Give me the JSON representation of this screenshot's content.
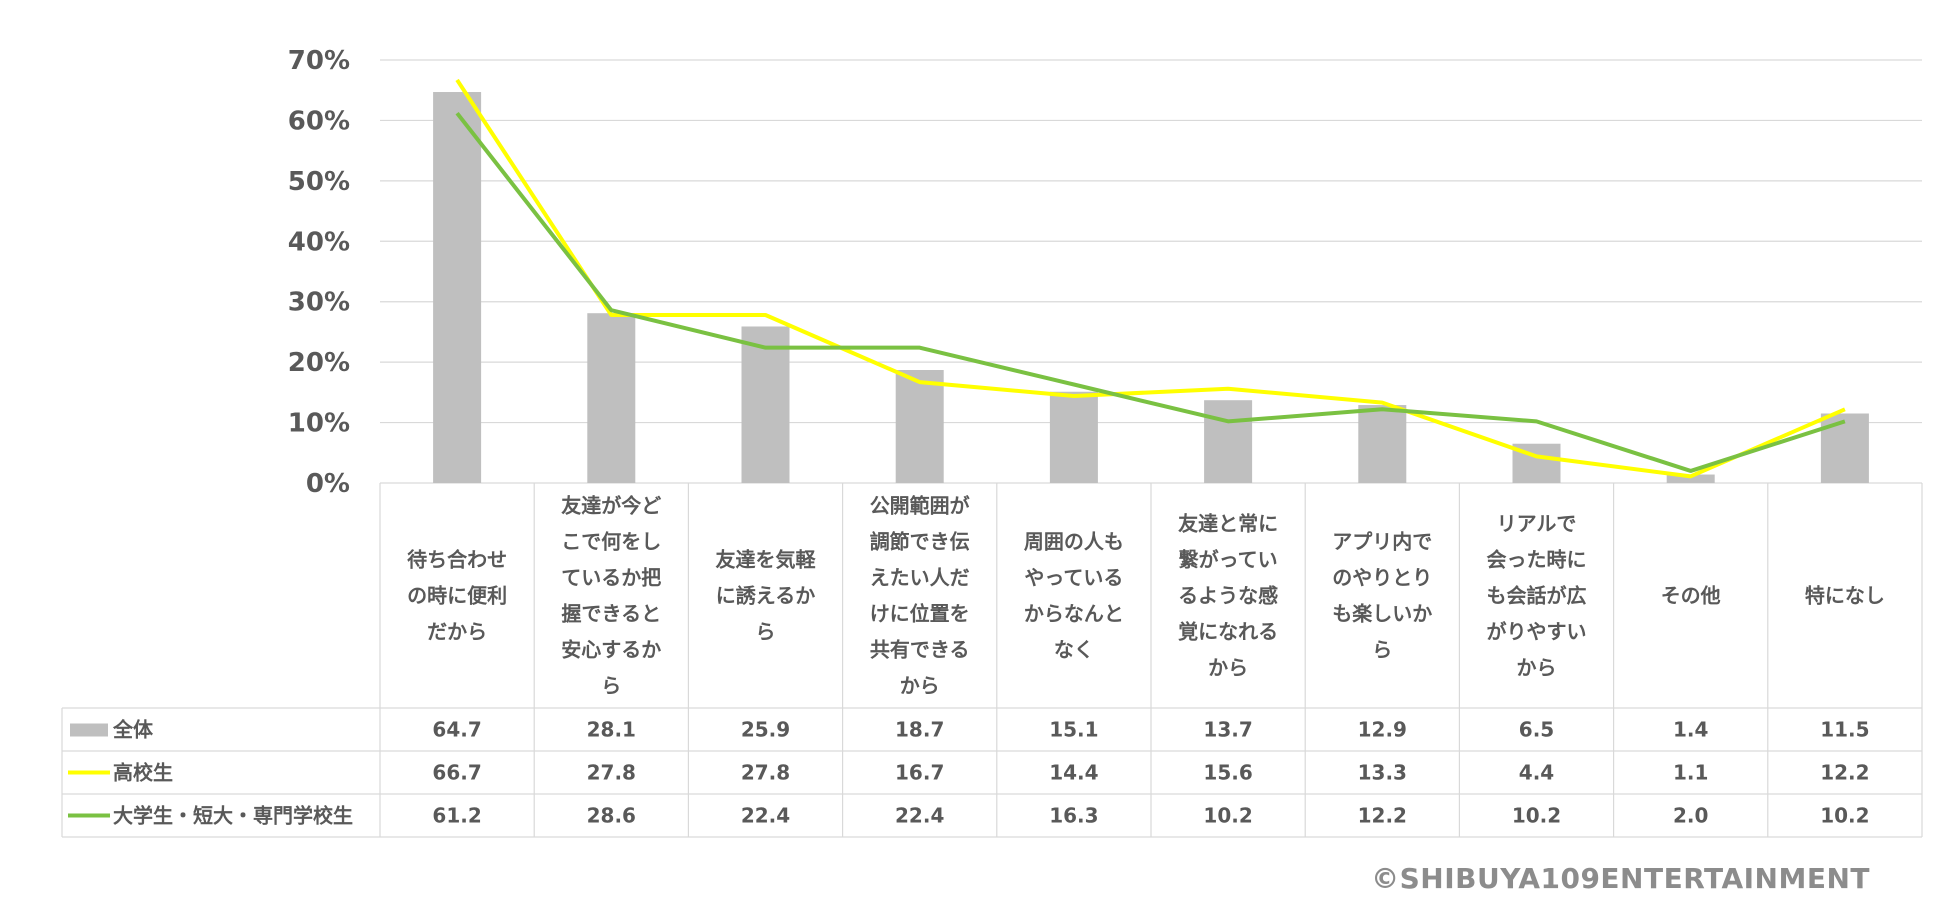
{
  "colors": {
    "overall": "#bfbfbf",
    "high_school": "#ffff00",
    "university": "#7ac142",
    "grid": "#d9d9d9",
    "text": "#595959"
  },
  "chart_data": {
    "type": "bar",
    "yticks": [
      "0%",
      "10%",
      "20%",
      "30%",
      "40%",
      "50%",
      "60%",
      "70%"
    ],
    "ylim": [
      0,
      70
    ],
    "grid": true,
    "categories": [
      [
        "待ち合わせ",
        "の時に便利",
        "だから"
      ],
      [
        "友達が今ど",
        "こで何をし",
        "ているか把",
        "握できると",
        "安心するか",
        "ら"
      ],
      [
        "友達を気軽",
        "に誘えるか",
        "ら"
      ],
      [
        "公開範囲が",
        "調節でき伝",
        "えたい人だ",
        "けに位置を",
        "共有できる",
        "から"
      ],
      [
        "周囲の人も",
        "やっている",
        "からなんと",
        "なく"
      ],
      [
        "友達と常に",
        "繋がってい",
        "るような感",
        "覚になれる",
        "から"
      ],
      [
        "アプリ内で",
        "のやりとり",
        "も楽しいか",
        "ら"
      ],
      [
        "リアルで",
        "会った時に",
        "も会話が広",
        "がりやすい",
        "から"
      ],
      [
        "その他"
      ],
      [
        "特になし"
      ]
    ],
    "series": [
      {
        "name": "全体",
        "type": "bar",
        "color": "#bfbfbf",
        "values": [
          64.7,
          28.1,
          25.9,
          18.7,
          15.1,
          13.7,
          12.9,
          6.5,
          1.4,
          11.5
        ],
        "labels": [
          "64.7",
          "28.1",
          "25.9",
          "18.7",
          "15.1",
          "13.7",
          "12.9",
          "6.5",
          "1.4",
          "11.5"
        ]
      },
      {
        "name": "高校生",
        "type": "line",
        "color": "#ffff00",
        "values": [
          66.7,
          27.8,
          27.8,
          16.7,
          14.4,
          15.6,
          13.3,
          4.4,
          1.1,
          12.2
        ],
        "labels": [
          "66.7",
          "27.8",
          "27.8",
          "16.7",
          "14.4",
          "15.6",
          "13.3",
          "4.4",
          "1.1",
          "12.2"
        ]
      },
      {
        "name": "大学生・短大・専門学校生",
        "type": "line",
        "color": "#7ac142",
        "values": [
          61.2,
          28.6,
          22.4,
          22.4,
          16.3,
          10.2,
          12.2,
          10.2,
          2.0,
          10.2
        ],
        "labels": [
          "61.2",
          "28.6",
          "22.4",
          "22.4",
          "16.3",
          "10.2",
          "12.2",
          "10.2",
          "2.0",
          "10.2"
        ]
      }
    ]
  },
  "copyright": "©SHIBUYA109ENTERTAINMENT"
}
